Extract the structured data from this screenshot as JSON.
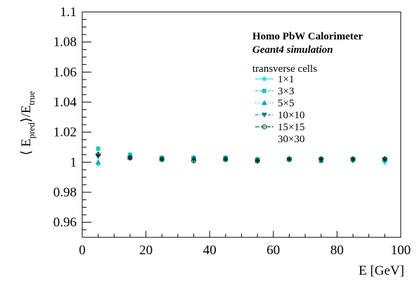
{
  "chart_data": {
    "type": "scatter",
    "title": "",
    "ylabel": {
      "prefix": "⟨ E",
      "sub1": "pred",
      "mid": "⟩/E",
      "sub2": "true"
    },
    "xlabel": "E [GeV]",
    "xlim": [
      0,
      100
    ],
    "ylim": [
      0.95,
      1.1
    ],
    "xticks": [
      "0",
      "20",
      "40",
      "60",
      "80",
      "100"
    ],
    "yticks": [
      "0.96",
      "0.98",
      "1",
      "1.02",
      "1.04",
      "1.06",
      "1.08",
      "1.1"
    ],
    "annotations": {
      "line1": "Homo PbW Calorimeter",
      "line2": "Geant4 simulation",
      "legend_title": "transverse cells"
    },
    "legend_placement": "top-right",
    "x": [
      5,
      15,
      25,
      35,
      45,
      55,
      65,
      75,
      85,
      95
    ],
    "series": [
      {
        "name": "1×1",
        "color": "#33e0d5",
        "marker": "circle",
        "values": [
          0.999,
          1.004,
          1.002,
          1.002,
          1.002,
          1.001,
          1.002,
          1.002,
          1.001,
          1.0
        ]
      },
      {
        "name": "3×3",
        "color": "#2bc4c0",
        "marker": "square",
        "values": [
          1.009,
          1.005,
          1.003,
          1.003,
          1.003,
          1.002,
          1.002,
          1.002,
          1.002,
          1.002
        ]
      },
      {
        "name": "5×5",
        "color": "#20a8a8",
        "marker": "triangle-up",
        "values": [
          1.0,
          1.003,
          1.002,
          1.002,
          1.002,
          1.001,
          1.002,
          1.001,
          1.002,
          1.002
        ]
      },
      {
        "name": "10×10",
        "color": "#157e80",
        "marker": "triangle-down",
        "values": [
          1.004,
          1.003,
          1.002,
          1.002,
          1.002,
          1.001,
          1.002,
          1.002,
          1.002,
          1.002
        ]
      },
      {
        "name": "15×15",
        "color": "#0d5556",
        "marker": "open-circle",
        "values": [
          1.005,
          1.003,
          1.002,
          1.001,
          1.002,
          1.001,
          1.002,
          1.002,
          1.002,
          1.002
        ]
      },
      {
        "name": "30×30",
        "color": "#000000",
        "marker": "none",
        "values": [
          1.005,
          1.003,
          1.002,
          1.002,
          1.002,
          1.001,
          1.002,
          1.002,
          1.002,
          1.002
        ]
      }
    ]
  }
}
